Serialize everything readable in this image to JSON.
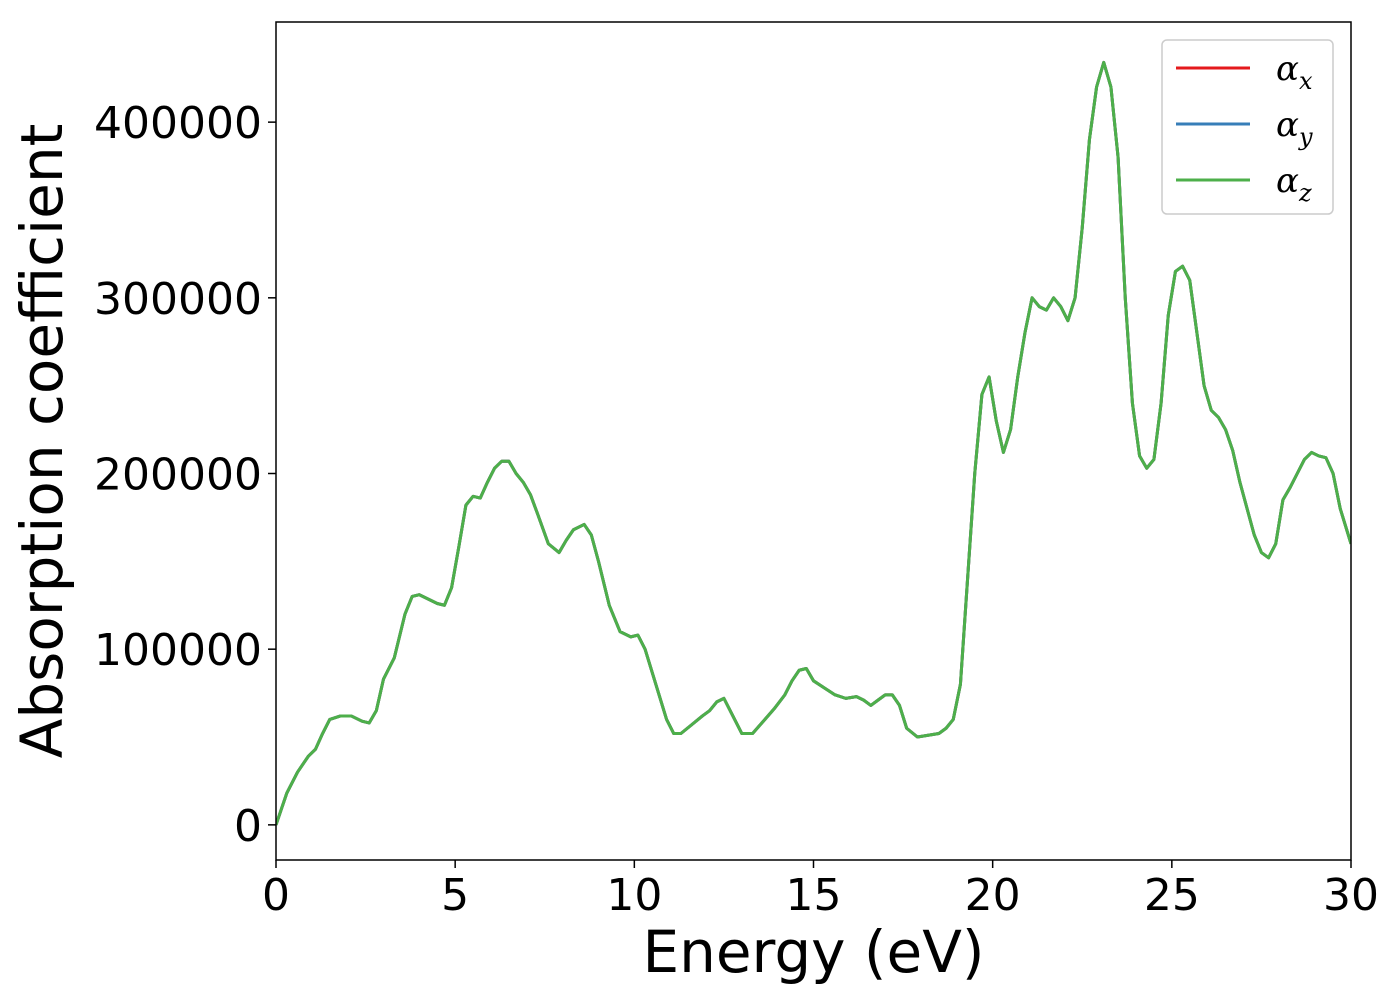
{
  "chart_data": {
    "type": "line",
    "xlabel": "Energy (eV)",
    "ylabel": "Absorption coefficient",
    "xlim": [
      0,
      30
    ],
    "ylim": [
      -20000,
      457000
    ],
    "xticks": [
      0,
      5,
      10,
      15,
      20,
      25,
      30
    ],
    "xtick_labels": [
      "0",
      "5",
      "10",
      "15",
      "20",
      "25",
      "30"
    ],
    "yticks": [
      0,
      100000,
      200000,
      300000,
      400000
    ],
    "ytick_labels": [
      "0",
      "100000",
      "200000",
      "300000",
      "400000"
    ],
    "grid": false,
    "legend": {
      "placement": "top-right",
      "entries": [
        {
          "symbol": "α",
          "sub": "x",
          "color": "#e41a1c"
        },
        {
          "symbol": "α",
          "sub": "y",
          "color": "#377eb8"
        },
        {
          "symbol": "α",
          "sub": "z",
          "color": "#4daf4a"
        }
      ]
    },
    "x": [
      0,
      0.3,
      0.6,
      0.9,
      1.1,
      1.3,
      1.5,
      1.8,
      2.1,
      2.4,
      2.6,
      2.8,
      3.0,
      3.3,
      3.6,
      3.8,
      4.0,
      4.2,
      4.5,
      4.7,
      4.9,
      5.1,
      5.3,
      5.5,
      5.7,
      5.9,
      6.1,
      6.3,
      6.5,
      6.7,
      6.9,
      7.1,
      7.3,
      7.6,
      7.9,
      8.1,
      8.3,
      8.6,
      8.8,
      9.0,
      9.3,
      9.6,
      9.9,
      10.1,
      10.3,
      10.6,
      10.9,
      11.1,
      11.3,
      11.6,
      11.9,
      12.1,
      12.3,
      12.5,
      12.7,
      13.0,
      13.3,
      13.6,
      13.9,
      14.2,
      14.4,
      14.6,
      14.8,
      15.0,
      15.3,
      15.6,
      15.9,
      16.2,
      16.4,
      16.6,
      16.8,
      17.0,
      17.2,
      17.4,
      17.6,
      17.9,
      18.2,
      18.5,
      18.7,
      18.9,
      19.1,
      19.3,
      19.5,
      19.7,
      19.9,
      20.1,
      20.3,
      20.5,
      20.7,
      20.9,
      21.1,
      21.3,
      21.5,
      21.7,
      21.9,
      22.1,
      22.3,
      22.5,
      22.7,
      22.9,
      23.1,
      23.3,
      23.5,
      23.7,
      23.9,
      24.1,
      24.3,
      24.5,
      24.7,
      24.9,
      25.1,
      25.3,
      25.5,
      25.7,
      25.9,
      26.1,
      26.3,
      26.5,
      26.7,
      26.9,
      27.1,
      27.3,
      27.5,
      27.7,
      27.9,
      28.1,
      28.3,
      28.5,
      28.7,
      28.9,
      29.1,
      29.3,
      29.5,
      29.7,
      30.0
    ],
    "series": [
      {
        "name": "α_x",
        "values": [
          0,
          18000,
          30000,
          39000,
          43000,
          52000,
          60000,
          62000,
          62000,
          59000,
          58000,
          65000,
          83000,
          95000,
          120000,
          130000,
          131000,
          129000,
          126000,
          125000,
          135000,
          158000,
          182000,
          187000,
          186000,
          195000,
          203000,
          207000,
          207000,
          200000,
          195000,
          188000,
          177000,
          160000,
          155000,
          162000,
          168000,
          171000,
          165000,
          150000,
          125000,
          110000,
          107000,
          108000,
          100000,
          80000,
          60000,
          52000,
          52000,
          57000,
          62000,
          65000,
          70000,
          72000,
          64000,
          52000,
          52000,
          59000,
          66000,
          74000,
          82000,
          88000,
          89000,
          82000,
          78000,
          74000,
          72000,
          73000,
          71000,
          68000,
          71000,
          74000,
          74000,
          68000,
          55000,
          50000,
          51000,
          52000,
          55000,
          60000,
          80000,
          140000,
          200000,
          245000,
          255000,
          230000,
          212000,
          225000,
          255000,
          280000,
          300000,
          295000,
          293000,
          300000,
          295000,
          287000,
          300000,
          340000,
          390000,
          420000,
          434000,
          420000,
          380000,
          300000,
          240000,
          210000,
          203000,
          208000,
          240000,
          290000,
          315000,
          318000,
          310000,
          280000,
          250000,
          236000,
          232000,
          225000,
          213000,
          195000,
          180000,
          165000,
          155000,
          152000,
          160000,
          185000,
          192000,
          200000,
          208000,
          212000,
          210000,
          209000,
          200000,
          180000,
          160000
        ]
      },
      {
        "name": "α_y",
        "values": [
          0,
          18000,
          30000,
          39000,
          43000,
          52000,
          60000,
          62000,
          62000,
          59000,
          58000,
          65000,
          83000,
          95000,
          120000,
          130000,
          131000,
          129000,
          126000,
          125000,
          135000,
          158000,
          182000,
          187000,
          186000,
          195000,
          203000,
          207000,
          207000,
          200000,
          195000,
          188000,
          177000,
          160000,
          155000,
          162000,
          168000,
          171000,
          165000,
          150000,
          125000,
          110000,
          107000,
          108000,
          100000,
          80000,
          60000,
          52000,
          52000,
          57000,
          62000,
          65000,
          70000,
          72000,
          64000,
          52000,
          52000,
          59000,
          66000,
          74000,
          82000,
          88000,
          89000,
          82000,
          78000,
          74000,
          72000,
          73000,
          71000,
          68000,
          71000,
          74000,
          74000,
          68000,
          55000,
          50000,
          51000,
          52000,
          55000,
          60000,
          80000,
          140000,
          200000,
          245000,
          255000,
          230000,
          212000,
          225000,
          255000,
          280000,
          300000,
          295000,
          293000,
          300000,
          295000,
          287000,
          300000,
          340000,
          390000,
          420000,
          434000,
          420000,
          380000,
          300000,
          240000,
          210000,
          203000,
          208000,
          240000,
          290000,
          315000,
          318000,
          310000,
          280000,
          250000,
          236000,
          232000,
          225000,
          213000,
          195000,
          180000,
          165000,
          155000,
          152000,
          160000,
          185000,
          192000,
          200000,
          208000,
          212000,
          210000,
          209000,
          200000,
          180000,
          160000
        ]
      },
      {
        "name": "α_z",
        "values": [
          0,
          18000,
          30000,
          39000,
          43000,
          52000,
          60000,
          62000,
          62000,
          59000,
          58000,
          65000,
          83000,
          95000,
          120000,
          130000,
          131000,
          129000,
          126000,
          125000,
          135000,
          158000,
          182000,
          187000,
          186000,
          195000,
          203000,
          207000,
          207000,
          200000,
          195000,
          188000,
          177000,
          160000,
          155000,
          162000,
          168000,
          171000,
          165000,
          150000,
          125000,
          110000,
          107000,
          108000,
          100000,
          80000,
          60000,
          52000,
          52000,
          57000,
          62000,
          65000,
          70000,
          72000,
          64000,
          52000,
          52000,
          59000,
          66000,
          74000,
          82000,
          88000,
          89000,
          82000,
          78000,
          74000,
          72000,
          73000,
          71000,
          68000,
          71000,
          74000,
          74000,
          68000,
          55000,
          50000,
          51000,
          52000,
          55000,
          60000,
          80000,
          140000,
          200000,
          245000,
          255000,
          230000,
          212000,
          225000,
          255000,
          280000,
          300000,
          295000,
          293000,
          300000,
          295000,
          287000,
          300000,
          340000,
          390000,
          420000,
          434000,
          420000,
          380000,
          300000,
          240000,
          210000,
          203000,
          208000,
          240000,
          290000,
          315000,
          318000,
          310000,
          280000,
          250000,
          236000,
          232000,
          225000,
          213000,
          195000,
          180000,
          165000,
          155000,
          152000,
          160000,
          185000,
          192000,
          200000,
          208000,
          212000,
          210000,
          209000,
          200000,
          180000,
          160000
        ]
      }
    ]
  }
}
